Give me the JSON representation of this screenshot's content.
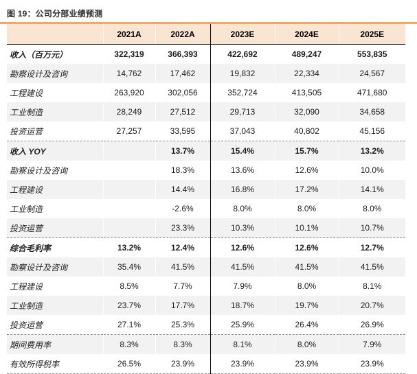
{
  "title": "图 19：公司分部业绩预测",
  "colors": {
    "accent_rule": "#EFA868",
    "header_bg": "#FAE5D3",
    "row_shade": "#F2F2F2",
    "divider_line": "#000000",
    "dashed_line": "#8C8C8C"
  },
  "table": {
    "columns": [
      "",
      "2021A",
      "2022A",
      "2023E",
      "2024E",
      "2025E"
    ],
    "sections": [
      {
        "name": "revenue",
        "rows": [
          {
            "label": "收入（百万元）",
            "bold": true,
            "values": [
              "322,319",
              "366,393",
              "422,692",
              "489,247",
              "553,835"
            ]
          },
          {
            "label": "勘察设计及咨询",
            "bold": false,
            "values": [
              "14,762",
              "17,462",
              "19,832",
              "22,334",
              "24,567"
            ]
          },
          {
            "label": "工程建设",
            "bold": false,
            "values": [
              "263,920",
              "302,056",
              "352,724",
              "413,505",
              "471,680"
            ]
          },
          {
            "label": "工业制造",
            "bold": false,
            "values": [
              "28,249",
              "27,512",
              "29,713",
              "32,090",
              "34,658"
            ]
          },
          {
            "label": "投资运营",
            "bold": false,
            "values": [
              "27,257",
              "33,595",
              "37,043",
              "40,802",
              "45,156"
            ]
          }
        ]
      },
      {
        "name": "revenue_yoy",
        "rows": [
          {
            "label": "收入 YOY",
            "bold": true,
            "values": [
              "",
              "13.7%",
              "15.4%",
              "15.7%",
              "13.2%"
            ]
          },
          {
            "label": "勘察设计及咨询",
            "bold": false,
            "values": [
              "",
              "18.3%",
              "13.6%",
              "12.6%",
              "10.0%"
            ]
          },
          {
            "label": "工程建设",
            "bold": false,
            "values": [
              "",
              "14.4%",
              "16.8%",
              "17.2%",
              "14.1%"
            ]
          },
          {
            "label": "工业制造",
            "bold": false,
            "values": [
              "",
              "-2.6%",
              "8.0%",
              "8.0%",
              "8.0%"
            ]
          },
          {
            "label": "投资运营",
            "bold": false,
            "values": [
              "",
              "23.3%",
              "10.3%",
              "10.1%",
              "10.7%"
            ]
          }
        ]
      },
      {
        "name": "gross_margin",
        "rows": [
          {
            "label": "综合毛利率",
            "bold": true,
            "values": [
              "13.2%",
              "12.4%",
              "12.6%",
              "12.6%",
              "12.7%"
            ]
          },
          {
            "label": "勘察设计及咨询",
            "bold": false,
            "values": [
              "35.4%",
              "41.5%",
              "41.5%",
              "41.5%",
              "41.5%"
            ]
          },
          {
            "label": "工程建设",
            "bold": false,
            "values": [
              "8.5%",
              "7.7%",
              "7.9%",
              "8.0%",
              "8.1%"
            ]
          },
          {
            "label": "工业制造",
            "bold": false,
            "values": [
              "23.7%",
              "17.7%",
              "18.7%",
              "19.7%",
              "20.7%"
            ]
          },
          {
            "label": "投资运营",
            "bold": false,
            "values": [
              "27.1%",
              "25.3%",
              "25.9%",
              "26.4%",
              "26.9%"
            ]
          }
        ]
      },
      {
        "name": "other_ratios",
        "rows": [
          {
            "label": "期间费用率",
            "bold": false,
            "values": [
              "8.3%",
              "8.3%",
              "8.1%",
              "8.0%",
              "7.9%"
            ]
          },
          {
            "label": "有效所得税率",
            "bold": false,
            "values": [
              "26.5%",
              "23.9%",
              "23.9%",
              "23.9%",
              "23.9%"
            ]
          }
        ]
      }
    ]
  }
}
